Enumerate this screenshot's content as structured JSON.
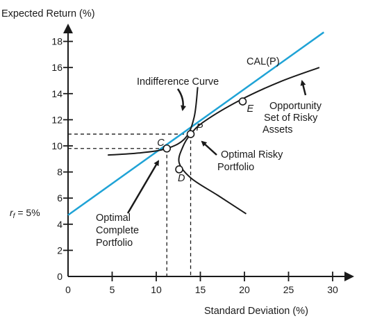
{
  "chart_data": {
    "type": "line",
    "title": "",
    "ylabel": "Expected Return (%)",
    "xlabel": "Standard Deviation (%)",
    "xlim": [
      0,
      30
    ],
    "ylim": [
      0,
      18
    ],
    "x_ticks": [
      0,
      5,
      10,
      15,
      20,
      25,
      30
    ],
    "y_ticks": [
      0,
      2,
      4,
      6,
      8,
      10,
      12,
      14,
      16,
      18
    ],
    "rf_label": "r",
    "rf_sub": "f",
    "rf_value": " = 5%",
    "colors": {
      "cal": "#1fa3d6",
      "curves": "#1a1a1a",
      "guides": "#1a1a1a"
    },
    "series": [
      {
        "name": "CAL(P)",
        "type": "line",
        "points": [
          [
            0,
            4.7
          ],
          [
            29,
            18.7
          ]
        ]
      },
      {
        "name": "Indifference Curve",
        "type": "curve",
        "points": [
          [
            4.5,
            9.3
          ],
          [
            8,
            9.45
          ],
          [
            11.2,
            9.8
          ],
          [
            13.3,
            10.6
          ],
          [
            14.3,
            12.2
          ],
          [
            14.7,
            14.5
          ]
        ]
      },
      {
        "name": "Opportunity Set of Risky Assets",
        "type": "curve",
        "points": [
          [
            20.2,
            4.8
          ],
          [
            17,
            6.2
          ],
          [
            14,
            7.5
          ],
          [
            12.6,
            8.7
          ],
          [
            13.0,
            9.9
          ],
          [
            13.9,
            10.9
          ],
          [
            15.5,
            11.9
          ],
          [
            19.5,
            13.5
          ],
          [
            24,
            14.9
          ],
          [
            28.5,
            16.0
          ]
        ]
      }
    ],
    "points": [
      {
        "label": "C",
        "x": 11.2,
        "y": 9.8
      },
      {
        "label": "P",
        "x": 13.9,
        "y": 10.9
      },
      {
        "label": "D",
        "x": 12.6,
        "y": 8.2
      },
      {
        "label": "E",
        "x": 19.8,
        "y": 13.4
      }
    ],
    "annotations": [
      {
        "name": "cal",
        "lines": [
          "CAL(P)"
        ]
      },
      {
        "name": "indifference-curve",
        "lines": [
          "Indifference Curve"
        ]
      },
      {
        "name": "opportunity-set",
        "lines": [
          "Opportunity",
          "Set of Risky",
          "Assets"
        ]
      },
      {
        "name": "optimal-risky",
        "lines": [
          "Optimal Risky",
          "Portfolio"
        ]
      },
      {
        "name": "optimal-complete",
        "lines": [
          "Optimal",
          "Complete",
          "Portfolio"
        ]
      }
    ]
  }
}
